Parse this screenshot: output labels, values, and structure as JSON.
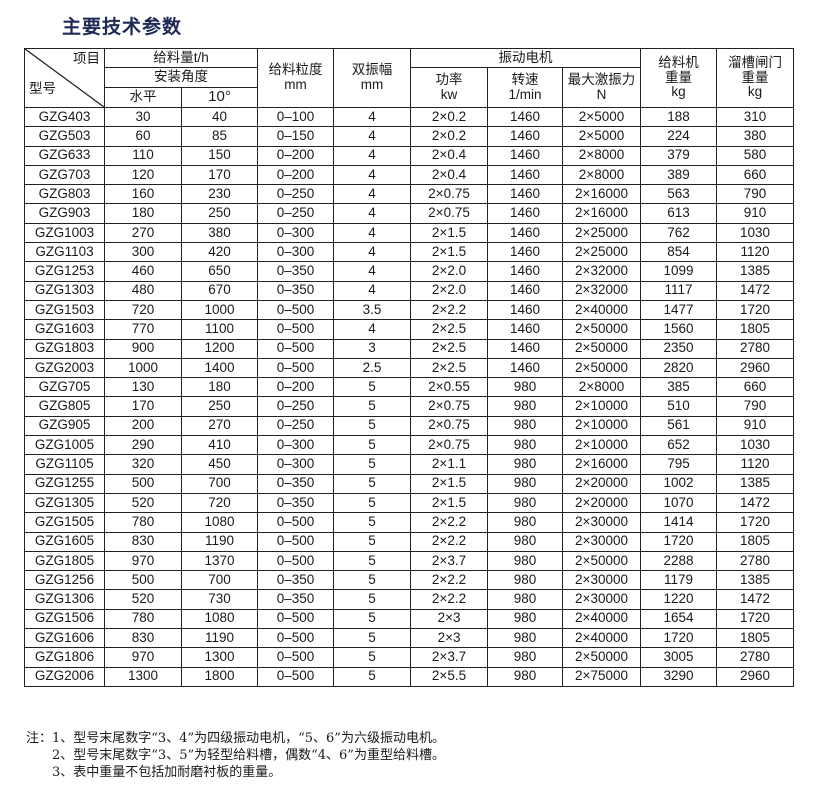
{
  "title": "主要技术参数",
  "header": {
    "item": "项目",
    "model": "型号",
    "feed": "给料量t/h",
    "angle": "安装角度",
    "horizontal": "水平",
    "deg10": "10°",
    "size": "给料粒度",
    "size_unit": "mm",
    "amp": "双振幅",
    "amp_unit": "mm",
    "motor": "振动电机",
    "power": "功率",
    "power_unit": "kw",
    "speed": "转速",
    "speed_unit": "1/min",
    "force": "最大激振力",
    "force_unit": "N",
    "fw": "给料机",
    "fw2": "重量",
    "fw_unit": "kg",
    "gw": "溜槽闸门",
    "gw2": "重量",
    "gw_unit": "kg"
  },
  "rows": [
    [
      "GZG403",
      "30",
      "40",
      "0–100",
      "4",
      "2×0.2",
      "1460",
      "2×5000",
      "188",
      "310"
    ],
    [
      "GZG503",
      "60",
      "85",
      "0–150",
      "4",
      "2×0.2",
      "1460",
      "2×5000",
      "224",
      "380"
    ],
    [
      "GZG633",
      "110",
      "150",
      "0–200",
      "4",
      "2×0.4",
      "1460",
      "2×8000",
      "379",
      "580"
    ],
    [
      "GZG703",
      "120",
      "170",
      "0–200",
      "4",
      "2×0.4",
      "1460",
      "2×8000",
      "389",
      "660"
    ],
    [
      "GZG803",
      "160",
      "230",
      "0–250",
      "4",
      "2×0.75",
      "1460",
      "2×16000",
      "563",
      "790"
    ],
    [
      "GZG903",
      "180",
      "250",
      "0–250",
      "4",
      "2×0.75",
      "1460",
      "2×16000",
      "613",
      "910"
    ],
    [
      "GZG1003",
      "270",
      "380",
      "0–300",
      "4",
      "2×1.5",
      "1460",
      "2×25000",
      "762",
      "1030"
    ],
    [
      "GZG1103",
      "300",
      "420",
      "0–300",
      "4",
      "2×1.5",
      "1460",
      "2×25000",
      "854",
      "1120"
    ],
    [
      "GZG1253",
      "460",
      "650",
      "0–350",
      "4",
      "2×2.0",
      "1460",
      "2×32000",
      "1099",
      "1385"
    ],
    [
      "GZG1303",
      "480",
      "670",
      "0–350",
      "4",
      "2×2.0",
      "1460",
      "2×32000",
      "1117",
      "1472"
    ],
    [
      "GZG1503",
      "720",
      "1000",
      "0–500",
      "3.5",
      "2×2.2",
      "1460",
      "2×40000",
      "1477",
      "1720"
    ],
    [
      "GZG1603",
      "770",
      "1100",
      "0–500",
      "4",
      "2×2.5",
      "1460",
      "2×50000",
      "1560",
      "1805"
    ],
    [
      "GZG1803",
      "900",
      "1200",
      "0–500",
      "3",
      "2×2.5",
      "1460",
      "2×50000",
      "2350",
      "2780"
    ],
    [
      "GZG2003",
      "1000",
      "1400",
      "0–500",
      "2.5",
      "2×2.5",
      "1460",
      "2×50000",
      "2820",
      "2960"
    ],
    [
      "GZG705",
      "130",
      "180",
      "0–200",
      "5",
      "2×0.55",
      "980",
      "2×8000",
      "385",
      "660"
    ],
    [
      "GZG805",
      "170",
      "250",
      "0–250",
      "5",
      "2×0.75",
      "980",
      "2×10000",
      "510",
      "790"
    ],
    [
      "GZG905",
      "200",
      "270",
      "0–250",
      "5",
      "2×0.75",
      "980",
      "2×10000",
      "561",
      "910"
    ],
    [
      "GZG1005",
      "290",
      "410",
      "0–300",
      "5",
      "2×0.75",
      "980",
      "2×10000",
      "652",
      "1030"
    ],
    [
      "GZG1105",
      "320",
      "450",
      "0–300",
      "5",
      "2×1.1",
      "980",
      "2×16000",
      "795",
      "1120"
    ],
    [
      "GZG1255",
      "500",
      "700",
      "0–350",
      "5",
      "2×1.5",
      "980",
      "2×20000",
      "1002",
      "1385"
    ],
    [
      "GZG1305",
      "520",
      "720",
      "0–350",
      "5",
      "2×1.5",
      "980",
      "2×20000",
      "1070",
      "1472"
    ],
    [
      "GZG1505",
      "780",
      "1080",
      "0–500",
      "5",
      "2×2.2",
      "980",
      "2×30000",
      "1414",
      "1720"
    ],
    [
      "GZG1605",
      "830",
      "1190",
      "0–500",
      "5",
      "2×2.2",
      "980",
      "2×30000",
      "1720",
      "1805"
    ],
    [
      "GZG1805",
      "970",
      "1370",
      "0–500",
      "5",
      "2×3.7",
      "980",
      "2×50000",
      "2288",
      "2780"
    ],
    [
      "GZG1256",
      "500",
      "700",
      "0–350",
      "5",
      "2×2.2",
      "980",
      "2×30000",
      "1179",
      "1385"
    ],
    [
      "GZG1306",
      "520",
      "730",
      "0–350",
      "5",
      "2×2.2",
      "980",
      "2×30000",
      "1220",
      "1472"
    ],
    [
      "GZG1506",
      "780",
      "1080",
      "0–500",
      "5",
      "2×3",
      "980",
      "2×40000",
      "1654",
      "1720"
    ],
    [
      "GZG1606",
      "830",
      "1190",
      "0–500",
      "5",
      "2×3",
      "980",
      "2×40000",
      "1720",
      "1805"
    ],
    [
      "GZG1806",
      "970",
      "1300",
      "0–500",
      "5",
      "2×3.7",
      "980",
      "2×50000",
      "3005",
      "2780"
    ],
    [
      "GZG2006",
      "1300",
      "1800",
      "0–500",
      "5",
      "2×5.5",
      "980",
      "2×75000",
      "3290",
      "2960"
    ]
  ],
  "notes": [
    "注：1、型号末尾数字“3、4”为四级振动电机，“5、6”为六级振动电机。",
    "2、型号末尾数字“3、5”为轻型给料槽，偶数“4、6”为重型给料槽。",
    "3、表中重量不包括加耐磨衬板的重量。"
  ]
}
